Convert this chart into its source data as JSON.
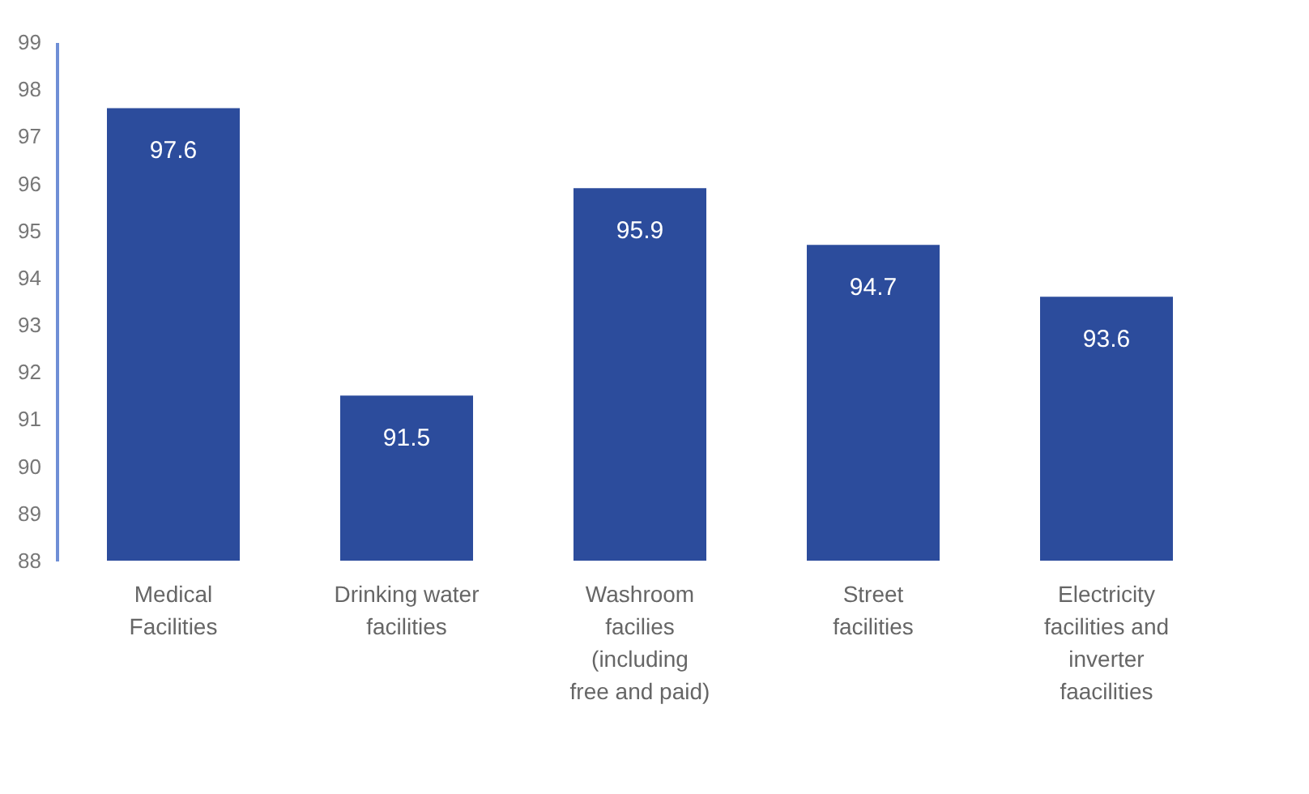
{
  "chart_data": {
    "type": "bar",
    "categories": [
      "Medical Facilities",
      "Drinking water facilities",
      "Washroom facilies (including free and paid)",
      "Street facilities",
      "Electricity facilities and inverter faacilities"
    ],
    "values": [
      97.6,
      91.5,
      95.9,
      94.7,
      93.6
    ],
    "color": "#2c4c9c",
    "ylim": [
      88,
      99
    ],
    "yticks": [
      88,
      89,
      90,
      91,
      92,
      93,
      94,
      95,
      96,
      97,
      98,
      99
    ],
    "data_labels": true,
    "grid": false
  }
}
